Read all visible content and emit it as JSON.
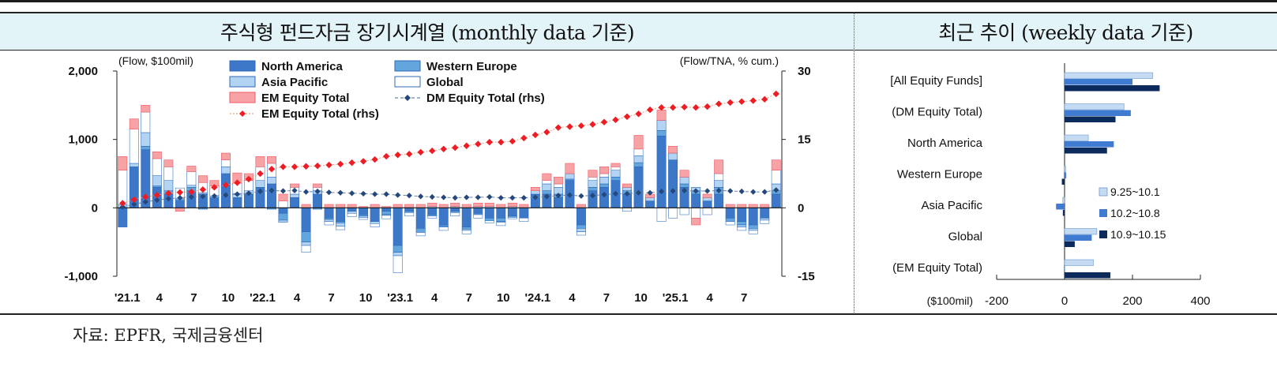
{
  "header": {
    "left_title": "주식형 펀드자금 장기시계열 (monthly data 기준)",
    "right_title": "최근 추이 (weekly data 기준)"
  },
  "source": "자료: EPFR,  국제금융센터",
  "colors": {
    "north_america": "#3d78c8",
    "western_europe": "#63a6dd",
    "asia_pacific": "#b3d3f2",
    "global": "#ffffff",
    "em_equity": "#f7a3a6",
    "em_rhs": "#ee1c24",
    "dm_rhs": "#24487b",
    "week1": "#c5dbf3",
    "week2": "#3f7bd0",
    "week3": "#0d2a5c"
  },
  "chart_data": [
    {
      "type": "bar",
      "stacked": true,
      "left_axis_label": "(Flow, $100mil)",
      "right_axis_label": "(Flow/TNA, % cum.)",
      "ylim": [
        -1000,
        2000
      ],
      "yticks": [
        "2,000",
        "1,000",
        "0",
        "-1,000"
      ],
      "y2lim": [
        -15,
        30
      ],
      "y2ticks": [
        "30",
        "15",
        "0",
        "-15"
      ],
      "x_ticks": [
        "'21.1",
        "4",
        "7",
        "10",
        "'22.1",
        "4",
        "7",
        "10",
        "'23.1",
        "4",
        "7",
        "10",
        "'24.1",
        "4",
        "7",
        "10",
        "'25.1",
        "4",
        "7"
      ],
      "x_tick_months": [
        0,
        3,
        6,
        9,
        12,
        15,
        18,
        21,
        24,
        27,
        30,
        33,
        36,
        39,
        42,
        45,
        48,
        51,
        54
      ],
      "legend": [
        {
          "name": "North America",
          "key": "north_america",
          "kind": "bar"
        },
        {
          "name": "Western Europe",
          "key": "western_europe",
          "kind": "bar"
        },
        {
          "name": "Asia Pacific",
          "key": "asia_pacific",
          "kind": "bar"
        },
        {
          "name": "Global",
          "key": "global",
          "kind": "bar"
        },
        {
          "name": "EM Equity Total",
          "key": "em_equity",
          "kind": "bar"
        },
        {
          "name": "DM Equity Total (rhs)",
          "key": "dm_rhs",
          "kind": "line"
        },
        {
          "name": "EM Equity Total (rhs)",
          "key": "em_rhs",
          "kind": "line"
        }
      ],
      "months": 58,
      "series": [
        {
          "name": "North America",
          "key": "north_america",
          "values": [
            -280,
            600,
            850,
            300,
            200,
            100,
            250,
            200,
            150,
            500,
            150,
            200,
            300,
            350,
            -80,
            150,
            -350,
            200,
            -150,
            -200,
            -50,
            -100,
            -200,
            -50,
            -550,
            -50,
            -300,
            -100,
            -250,
            -50,
            -280,
            -80,
            -150,
            -150,
            -120,
            -150,
            200,
            200,
            150,
            400,
            -250,
            250,
            300,
            400,
            200,
            600,
            100,
            1050,
            700,
            300,
            200,
            100,
            200,
            -150,
            -200,
            -250,
            -150,
            200
          ]
        },
        {
          "name": "Western Europe",
          "key": "western_europe",
          "values": [
            0,
            0,
            50,
            20,
            50,
            20,
            50,
            -20,
            0,
            0,
            0,
            0,
            0,
            -20,
            -100,
            0,
            -150,
            -20,
            -20,
            -20,
            0,
            -20,
            0,
            -50,
            -100,
            -20,
            -60,
            -20,
            -20,
            -20,
            -30,
            -20,
            -40,
            -50,
            -20,
            0,
            0,
            50,
            50,
            20,
            -50,
            50,
            50,
            50,
            50,
            60,
            0,
            80,
            0,
            50,
            50,
            0,
            100,
            -50,
            -50,
            -50,
            0,
            50
          ]
        },
        {
          "name": "Asia Pacific",
          "key": "asia_pacific",
          "values": [
            50,
            50,
            200,
            150,
            150,
            20,
            30,
            20,
            20,
            100,
            60,
            50,
            100,
            100,
            -30,
            50,
            -50,
            50,
            -30,
            -50,
            -30,
            -20,
            -30,
            -10,
            -50,
            0,
            0,
            20,
            -10,
            20,
            -20,
            20,
            20,
            -10,
            20,
            0,
            50,
            100,
            100,
            80,
            -50,
            100,
            100,
            100,
            50,
            100,
            50,
            150,
            100,
            100,
            50,
            50,
            100,
            0,
            -30,
            -30,
            -30,
            100
          ]
        },
        {
          "name": "Global",
          "key": "global",
          "values": [
            500,
            500,
            300,
            250,
            200,
            150,
            200,
            150,
            150,
            100,
            150,
            150,
            200,
            200,
            100,
            100,
            -100,
            50,
            -50,
            -50,
            -50,
            -30,
            -50,
            -50,
            -250,
            -50,
            -50,
            -30,
            -50,
            -50,
            -50,
            -50,
            -30,
            -50,
            -20,
            -50,
            0,
            50,
            50,
            0,
            -50,
            50,
            50,
            50,
            -50,
            100,
            0,
            -200,
            -150,
            -100,
            -150,
            -100,
            100,
            -50,
            -50,
            -50,
            -50,
            200
          ]
        },
        {
          "name": "EM Equity Total",
          "key": "em_equity",
          "values": [
            200,
            150,
            100,
            100,
            100,
            -50,
            80,
            100,
            80,
            100,
            150,
            100,
            150,
            100,
            100,
            50,
            50,
            50,
            50,
            50,
            50,
            20,
            50,
            20,
            50,
            50,
            50,
            50,
            50,
            50,
            50,
            50,
            50,
            50,
            50,
            50,
            50,
            100,
            100,
            150,
            50,
            100,
            100,
            50,
            50,
            200,
            50,
            150,
            100,
            100,
            -100,
            50,
            200,
            50,
            50,
            50,
            50,
            150
          ]
        },
        {
          "name": "DM Equity Total (rhs)",
          "key": "dm_rhs",
          "axis": "rhs",
          "values": [
            0.2,
            0.8,
            1.3,
            1.7,
            2.0,
            2.2,
            2.4,
            2.5,
            2.6,
            2.8,
            3.0,
            3.2,
            3.6,
            3.8,
            3.7,
            3.8,
            3.5,
            3.6,
            3.4,
            3.3,
            3.2,
            3.1,
            3.0,
            3.0,
            2.8,
            2.7,
            2.5,
            2.4,
            2.3,
            2.2,
            2.3,
            2.3,
            2.4,
            2.2,
            2.2,
            2.2,
            2.3,
            2.5,
            2.7,
            2.8,
            2.6,
            2.7,
            2.9,
            3.1,
            3.1,
            3.3,
            3.3,
            3.6,
            3.7,
            3.8,
            3.7,
            3.7,
            3.8,
            3.7,
            3.6,
            3.5,
            3.5,
            3.9
          ]
        },
        {
          "name": "EM Equity Total (rhs)",
          "key": "em_rhs",
          "axis": "rhs",
          "values": [
            1.0,
            1.8,
            2.4,
            2.8,
            3.2,
            3.4,
            3.5,
            4.0,
            4.5,
            5.0,
            5.5,
            6.3,
            7.5,
            8.5,
            9.0,
            9.0,
            9.1,
            9.2,
            9.4,
            9.6,
            9.9,
            10.2,
            10.6,
            11.3,
            11.6,
            11.8,
            12.2,
            12.5,
            12.9,
            13.2,
            13.6,
            14.0,
            14.4,
            14.4,
            14.6,
            15.3,
            16.0,
            16.6,
            17.6,
            17.8,
            18.0,
            18.3,
            18.8,
            19.3,
            20.0,
            20.6,
            21.5,
            22.0,
            22.0,
            22.1,
            22.0,
            22.2,
            22.8,
            23.1,
            23.3,
            23.5,
            23.8,
            25.0
          ]
        }
      ]
    },
    {
      "type": "bar",
      "orientation": "horizontal",
      "unit_label": "($100mil)",
      "xlim": [
        -200,
        400
      ],
      "xticks": [
        "-200",
        "0",
        "200",
        "400"
      ],
      "categories": [
        "[All Equity Funds]",
        "(DM Equity Total)",
        "North America",
        "Western Europe",
        "Asia Pacific",
        "Global",
        "(EM Equity Total)"
      ],
      "series": [
        {
          "name": "9.25~10.1",
          "key": "week1",
          "values": [
            260,
            175,
            70,
            3,
            -5,
            95,
            85
          ]
        },
        {
          "name": "10.2~10.8",
          "key": "week2",
          "values": [
            200,
            195,
            145,
            5,
            -25,
            80,
            0
          ]
        },
        {
          "name": "10.9~10.15",
          "key": "week3",
          "values": [
            280,
            150,
            125,
            -8,
            -5,
            30,
            135
          ]
        }
      ]
    }
  ]
}
